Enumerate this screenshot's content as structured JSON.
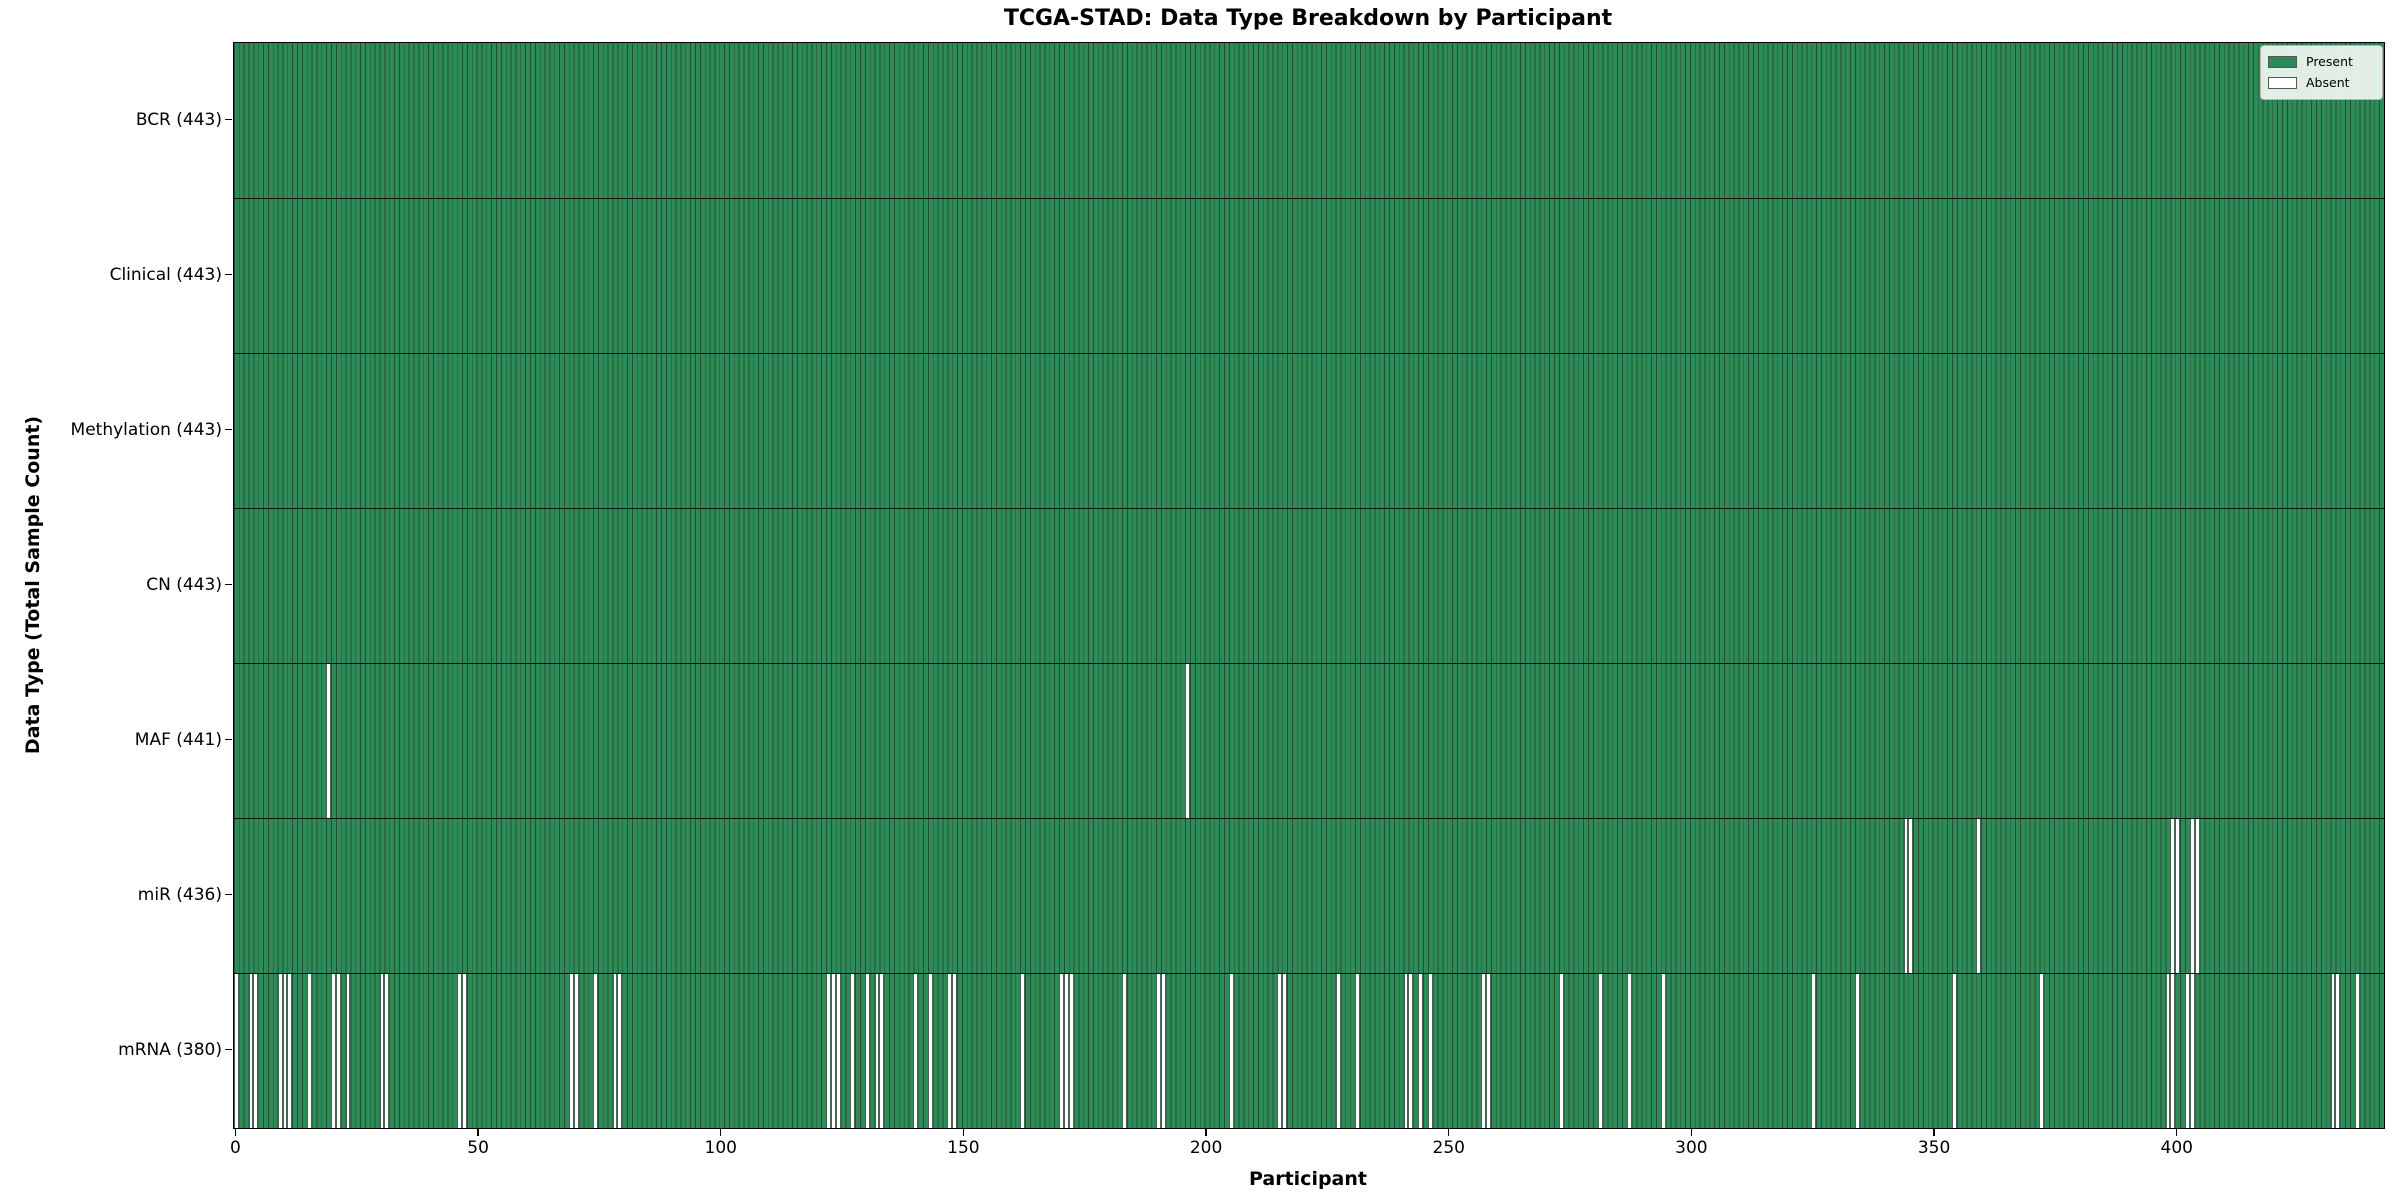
{
  "title": "TCGA-STAD: Data Type Breakdown by Participant",
  "x_axis_title": "Participant",
  "y_axis_title": "Data Type (Total Sample Count)",
  "colors": {
    "present": "#2e8b57",
    "absent": "#ffffff",
    "bar_edge": "#1d5034",
    "row_divider": "#1a1a1a",
    "legend_bg": "#f2f7f2",
    "legend_border": "#b5b5b5"
  },
  "chart_data": {
    "type": "heatmap",
    "title": "TCGA-STAD: Data Type Breakdown by Participant",
    "xlabel": "Participant",
    "ylabel": "Data Type (Total Sample Count)",
    "x_range": [
      -0.5,
      442.5
    ],
    "n_participants": 443,
    "x_ticks": [
      0,
      50,
      100,
      150,
      200,
      250,
      300,
      350,
      400
    ],
    "grid": false,
    "legend_position": "upper right",
    "legend": [
      {
        "label": "Present",
        "color": "#2e8b57"
      },
      {
        "label": "Absent",
        "color": "#ffffff"
      }
    ],
    "rows": [
      {
        "label": "BCR (443)",
        "name": "BCR",
        "present_count": 443,
        "absent_indices": []
      },
      {
        "label": "Clinical (443)",
        "name": "Clinical",
        "present_count": 443,
        "absent_indices": []
      },
      {
        "label": "Methylation (443)",
        "name": "Methylation",
        "present_count": 443,
        "absent_indices": []
      },
      {
        "label": "CN (443)",
        "name": "CN",
        "present_count": 443,
        "absent_indices": []
      },
      {
        "label": "MAF (441)",
        "name": "MAF",
        "present_count": 441,
        "absent_indices": [
          19,
          196
        ]
      },
      {
        "label": "miR (436)",
        "name": "miR",
        "present_count": 436,
        "absent_indices": [
          344,
          345,
          359,
          399,
          400,
          403,
          404
        ]
      },
      {
        "label": "mRNA (380)",
        "name": "mRNA",
        "present_count": 380,
        "absent_indices": [
          0,
          3,
          4,
          9,
          10,
          11,
          15,
          20,
          21,
          23,
          30,
          31,
          46,
          47,
          69,
          70,
          74,
          78,
          79,
          122,
          123,
          124,
          127,
          130,
          132,
          133,
          140,
          143,
          147,
          148,
          162,
          170,
          171,
          172,
          183,
          190,
          191,
          205,
          215,
          216,
          227,
          231,
          241,
          242,
          244,
          246,
          257,
          258,
          273,
          281,
          287,
          294,
          325,
          334,
          354,
          372,
          398,
          399,
          402,
          403,
          432,
          433,
          437
        ]
      }
    ]
  }
}
